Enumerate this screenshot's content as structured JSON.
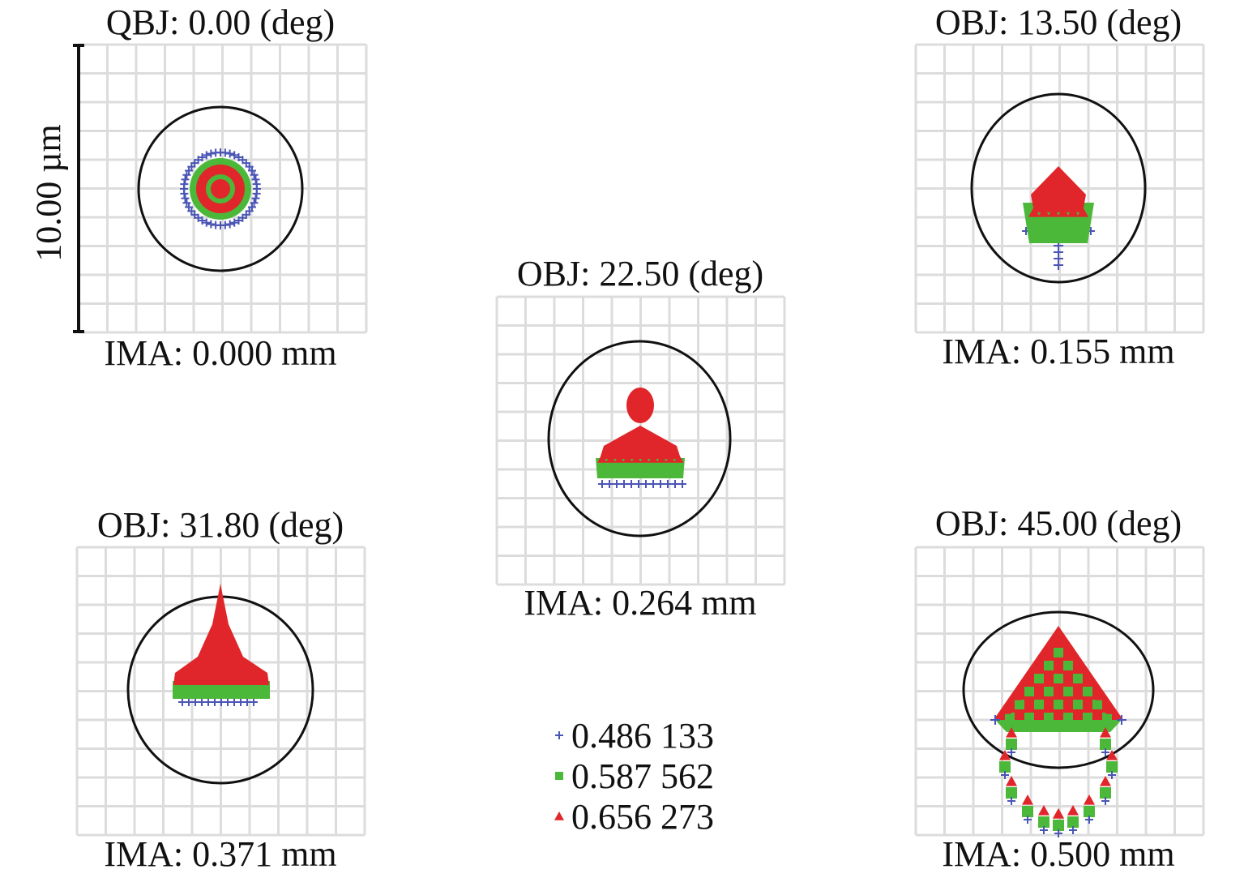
{
  "scale_bar": {
    "label": "10.00 µm"
  },
  "panels": [
    {
      "obj": "QBJ: 0.00 (deg)",
      "ima": "IMA: 0.000 mm"
    },
    {
      "obj": "OBJ: 13.50 (deg)",
      "ima": "IMA: 0.155 mm"
    },
    {
      "obj": "OBJ: 22.50 (deg)",
      "ima": "IMA: 0.264 mm"
    },
    {
      "obj": "OBJ: 31.80 (deg)",
      "ima": "IMA: 0.371 mm"
    },
    {
      "obj": "OBJ: 45.00 (deg)",
      "ima": "IMA: 0.500 mm"
    }
  ],
  "legend": [
    {
      "label": "0.486 133",
      "marker": "plus",
      "color": "#4a55b5"
    },
    {
      "label": "0.587 562",
      "marker": "square",
      "color": "#4cb83a"
    },
    {
      "label": "0.656 273",
      "marker": "triangle",
      "color": "#e0262a"
    }
  ],
  "colors": {
    "grid": "#dcdcdc",
    "airy_circle": "#111111"
  }
}
